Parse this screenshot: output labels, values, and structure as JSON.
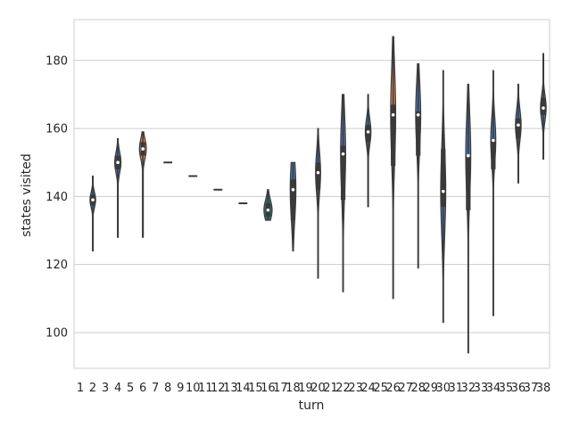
{
  "chart_data": {
    "type": "violin",
    "xlabel": "turn",
    "ylabel": "states visited",
    "x_categories": [
      "1",
      "2",
      "3",
      "4",
      "5",
      "6",
      "7",
      "8",
      "9",
      "10",
      "11",
      "12",
      "13",
      "14",
      "15",
      "16",
      "17",
      "18",
      "19",
      "20",
      "21",
      "22",
      "23",
      "24",
      "25",
      "26",
      "27",
      "28",
      "29",
      "30",
      "31",
      "32",
      "33",
      "34",
      "35",
      "36",
      "37",
      "38"
    ],
    "y_ticks": [
      100,
      120,
      140,
      160,
      180
    ],
    "ylim": [
      89.5,
      192
    ],
    "grid": "horizontal",
    "violins": [
      {
        "turn": 2,
        "min": 124,
        "q1": 137.5,
        "median": 139,
        "q3": 140.5,
        "max": 146,
        "width": 0.45,
        "color": "#4c72b0"
      },
      {
        "turn": 4,
        "min": 128,
        "q1": 148,
        "median": 150,
        "q3": 152,
        "max": 157,
        "width": 0.5,
        "color": "#4c72b0"
      },
      {
        "turn": 6,
        "min": 128,
        "q1": 152,
        "median": 154,
        "q3": 156,
        "max": 159,
        "width": 0.55,
        "color": "#dd8452"
      },
      {
        "turn": 8,
        "min": 150,
        "q1": 150,
        "median": 150,
        "q3": 150,
        "max": 150,
        "width": 0.7,
        "color": "#55a868"
      },
      {
        "turn": 10,
        "min": 146,
        "q1": 146,
        "median": 146,
        "q3": 146,
        "max": 146,
        "width": 0.7,
        "color": "#c44e52"
      },
      {
        "turn": 12,
        "min": 142,
        "q1": 142,
        "median": 142,
        "q3": 142,
        "max": 142,
        "width": 0.7,
        "color": "#8172b3"
      },
      {
        "turn": 14,
        "min": 138,
        "q1": 138,
        "median": 138,
        "q3": 138,
        "max": 138,
        "width": 0.7,
        "color": "#937860"
      },
      {
        "turn": 16,
        "min": 133,
        "q1": 134,
        "median": 136,
        "q3": 138,
        "max": 142,
        "width": 0.65,
        "color": "#2f6f66"
      },
      {
        "turn": 18,
        "min": 124,
        "q1": 133,
        "median": 142,
        "q3": 145,
        "max": 150,
        "width": 0.45,
        "color": "#4c72b0"
      },
      {
        "turn": 20,
        "min": 116,
        "q1": 142,
        "median": 147,
        "q3": 150,
        "max": 160,
        "width": 0.4,
        "color": "#4c72b0"
      },
      {
        "turn": 22,
        "min": 112,
        "q1": 139,
        "median": 152.5,
        "q3": 155,
        "max": 170,
        "width": 0.4,
        "color": "#4c72b0"
      },
      {
        "turn": 24,
        "min": 137,
        "q1": 156,
        "median": 159,
        "q3": 161,
        "max": 170,
        "width": 0.45,
        "color": "#4c72b0"
      },
      {
        "turn": 26,
        "min": 110,
        "q1": 149,
        "median": 164,
        "q3": 167,
        "max": 187,
        "width": 0.4,
        "color": "#dd8452"
      },
      {
        "turn": 28,
        "min": 119,
        "q1": 152,
        "median": 164,
        "q3": 165,
        "max": 179,
        "width": 0.4,
        "color": "#4c72b0"
      },
      {
        "turn": 30,
        "min": 103,
        "q1": 137,
        "median": 141.5,
        "q3": 154,
        "max": 177,
        "width": 0.4,
        "color": "#4c72b0"
      },
      {
        "turn": 32,
        "min": 94,
        "q1": 136,
        "median": 152,
        "q3": 152,
        "max": 173,
        "width": 0.4,
        "color": "#4c72b0"
      },
      {
        "turn": 34,
        "min": 105,
        "q1": 148,
        "median": 156.5,
        "q3": 157,
        "max": 177,
        "width": 0.4,
        "color": "#4c72b0"
      },
      {
        "turn": 36,
        "min": 144,
        "q1": 157,
        "median": 161,
        "q3": 163,
        "max": 173,
        "width": 0.45,
        "color": "#4c72b0"
      },
      {
        "turn": 38,
        "min": 151,
        "q1": 164,
        "median": 166,
        "q3": 169,
        "max": 182,
        "width": 0.45,
        "color": "#4c72b0"
      }
    ]
  }
}
